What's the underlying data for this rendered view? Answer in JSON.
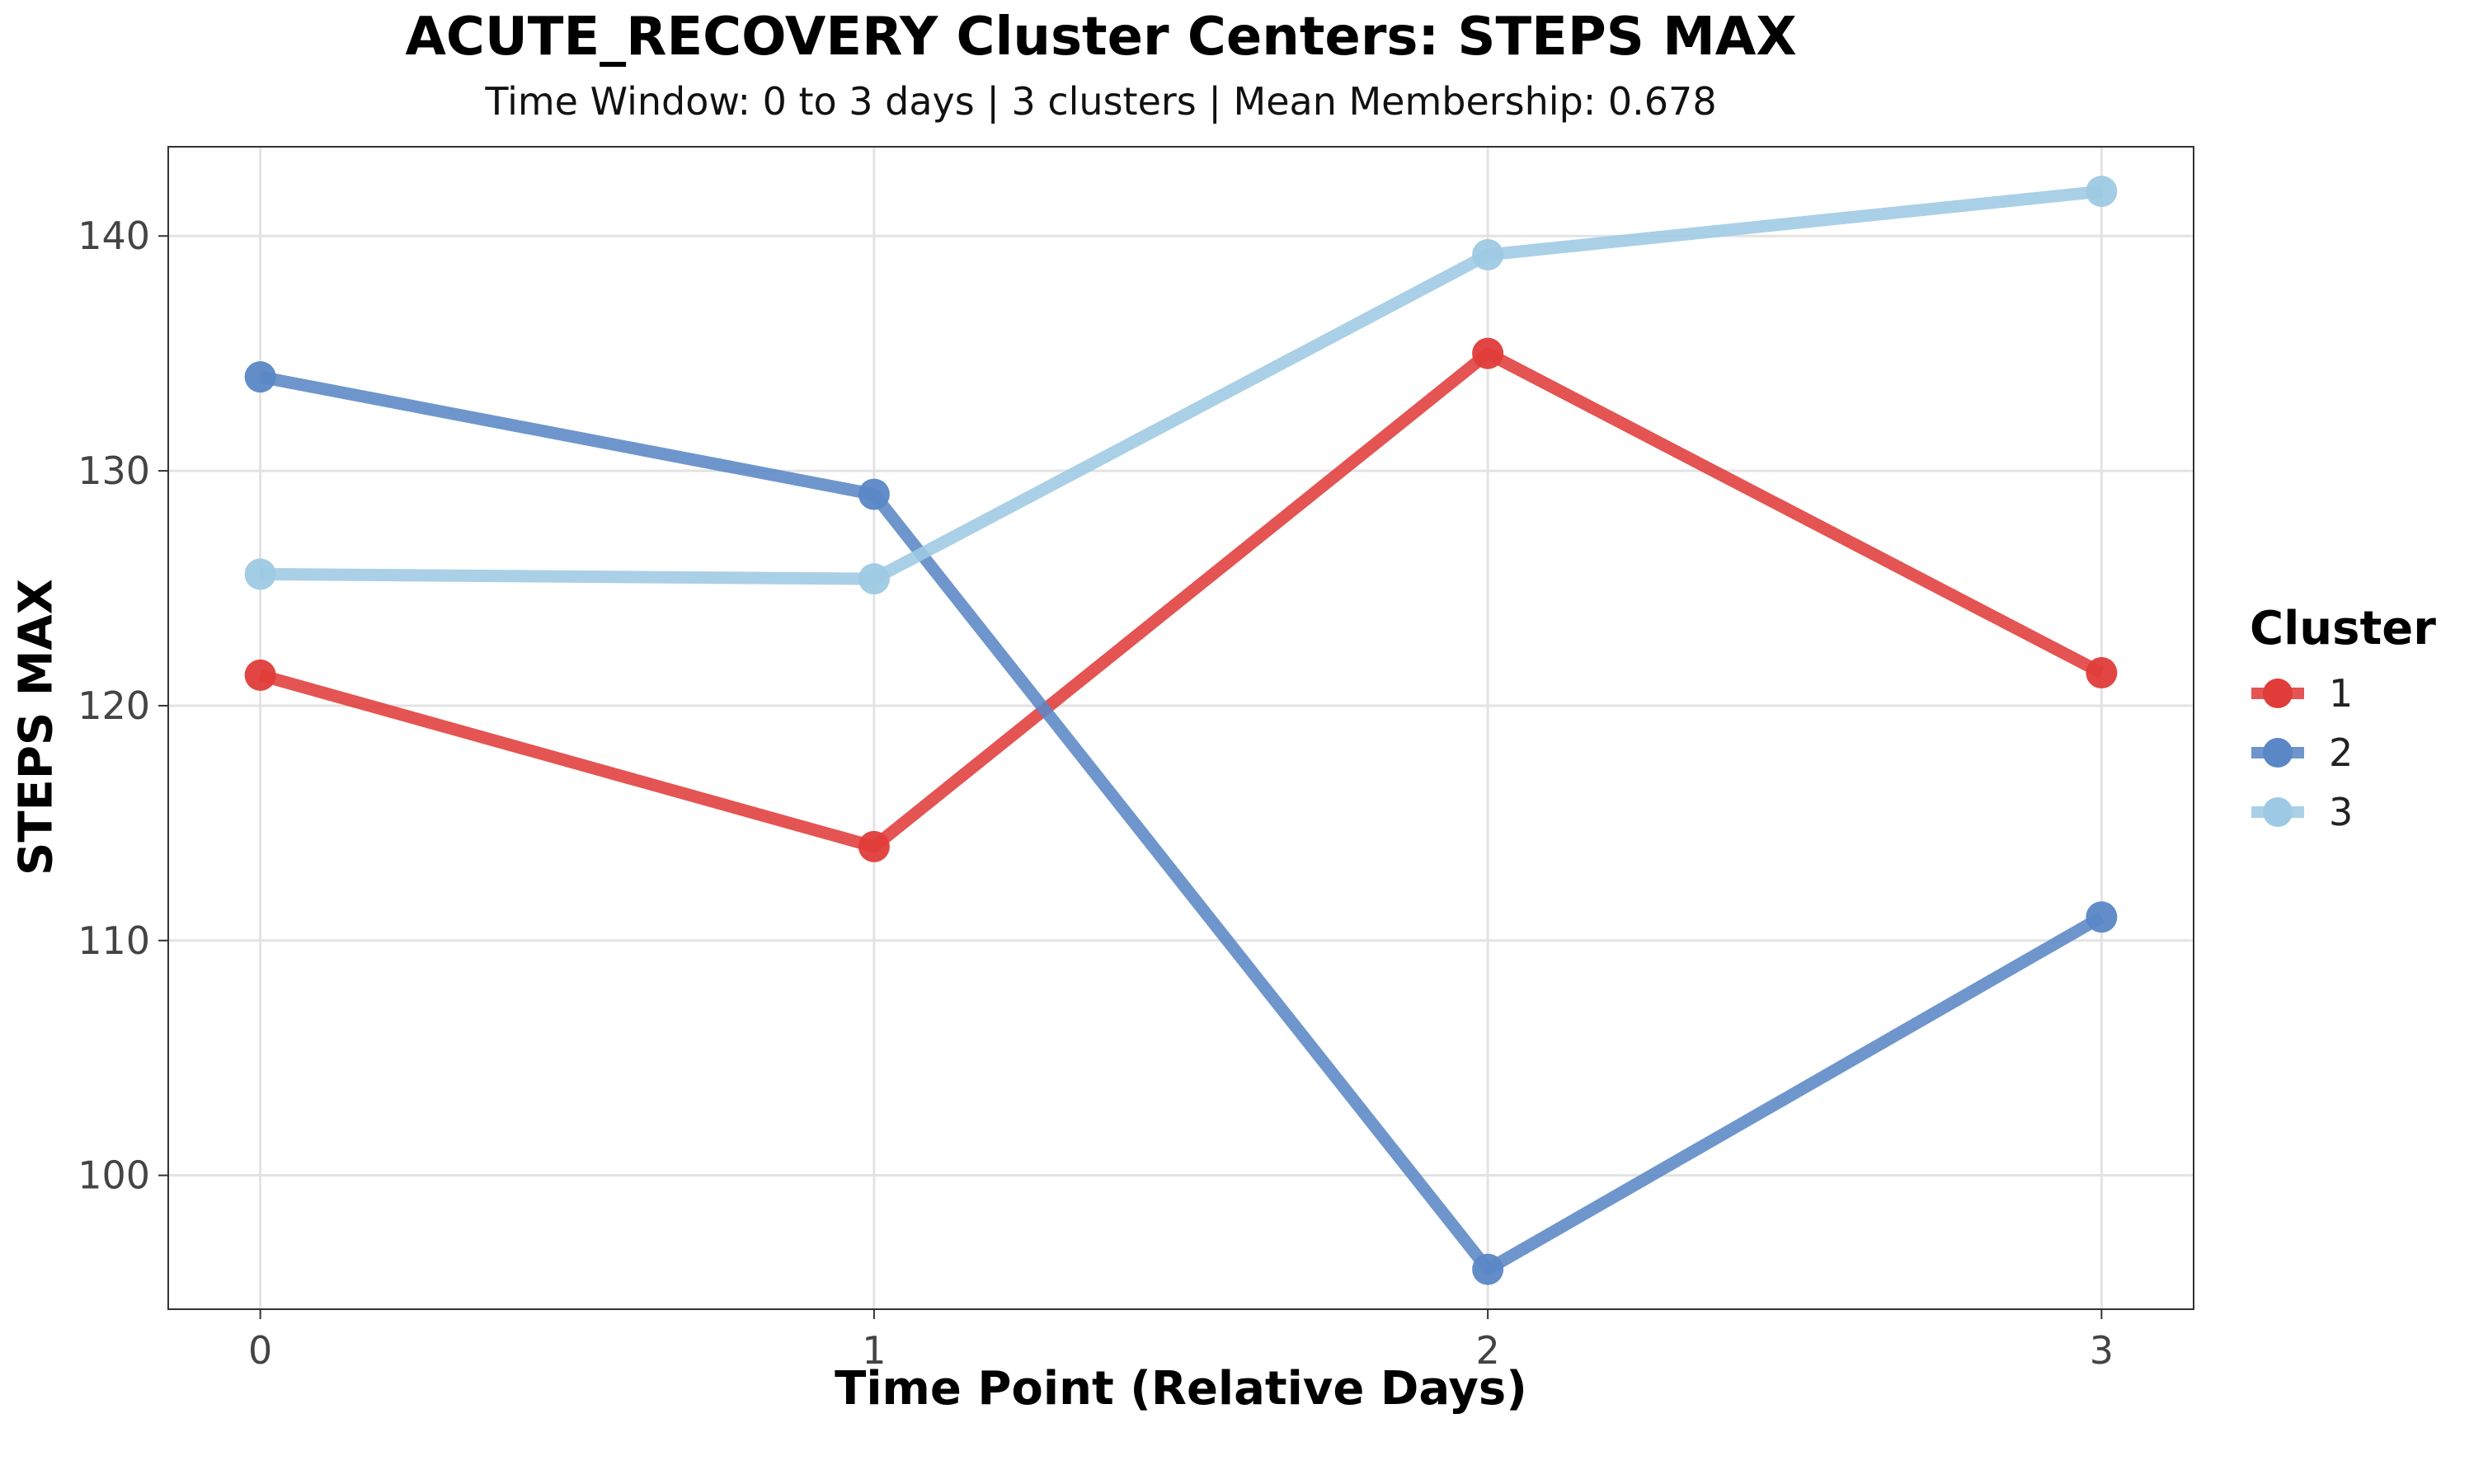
{
  "chart_data": {
    "type": "line",
    "title": "ACUTE_RECOVERY Cluster Centers: STEPS MAX",
    "subtitle": "Time Window: 0 to 3 days | 3 clusters | Mean Membership: 0.678",
    "xlabel": "Time Point (Relative Days)",
    "ylabel": "STEPS MAX",
    "x": [
      0,
      1,
      2,
      3
    ],
    "x_ticks": [
      "0",
      "1",
      "2",
      "3"
    ],
    "y_ticks": [
      100,
      110,
      120,
      130,
      140
    ],
    "xlim": [
      -0.15,
      3.15
    ],
    "ylim": [
      94.3,
      143.8
    ],
    "grid": true,
    "legend_title": "Cluster",
    "legend_position": "right",
    "series": [
      {
        "name": "1",
        "color": "#e03c3a",
        "values": [
          121.3,
          114.0,
          135.0,
          121.4
        ]
      },
      {
        "name": "2",
        "color": "#5a87c5",
        "values": [
          134.0,
          129.0,
          96.0,
          111.0
        ]
      },
      {
        "name": "3",
        "color": "#9ec9e4",
        "values": [
          125.6,
          125.4,
          139.2,
          141.9
        ]
      }
    ]
  }
}
